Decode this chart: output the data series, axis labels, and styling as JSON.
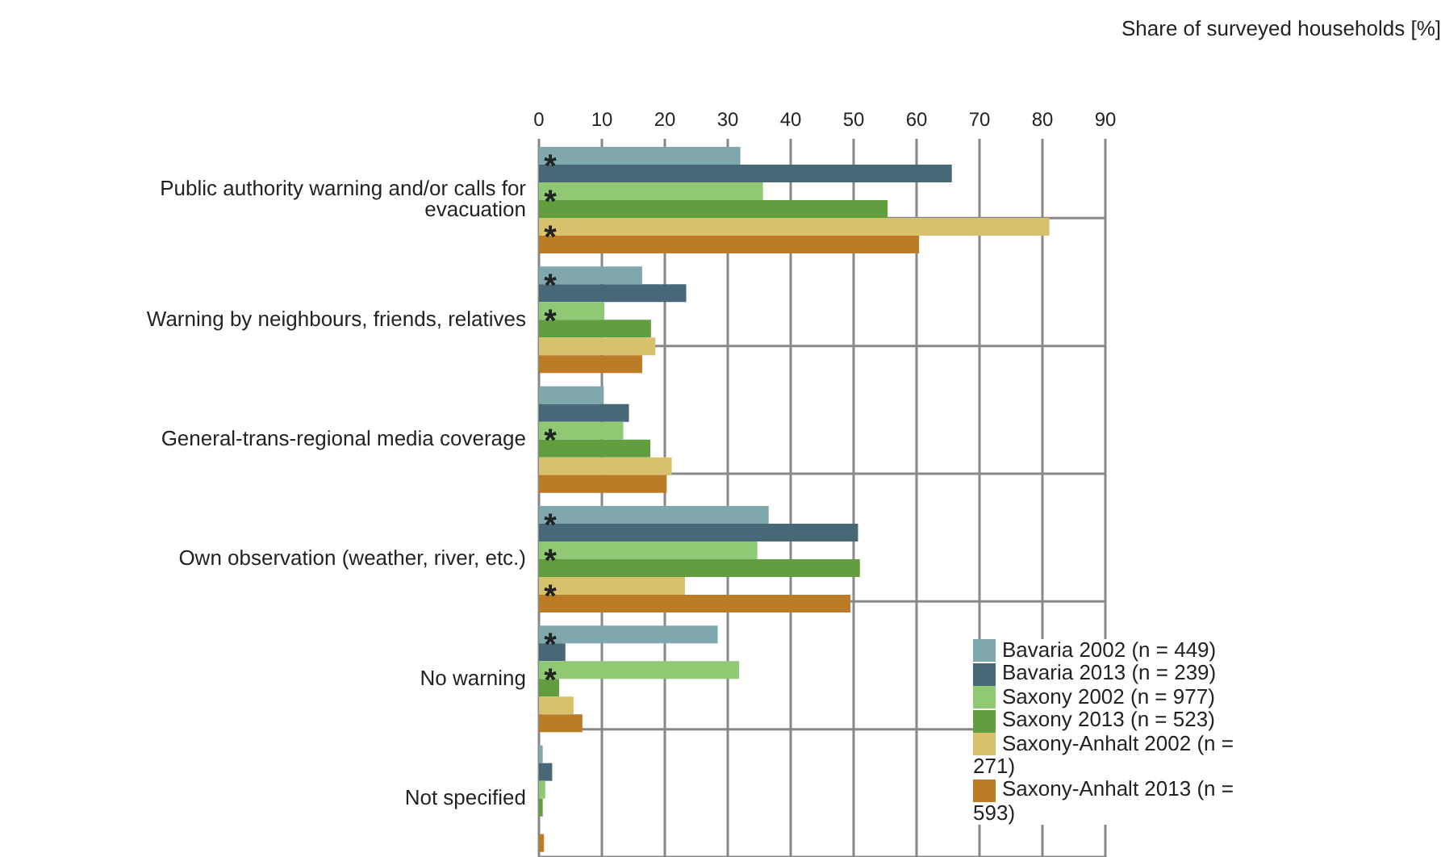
{
  "chart_data": {
    "type": "bar",
    "orientation": "horizontal",
    "xlabel": "Share of surveyed households [%]",
    "categories": [
      "Public authority warning and/or calls for evacuation",
      "Warning by neighbours, friends, relatives",
      "General-trans-regional media coverage",
      "Own observation (weather, river, etc.)",
      "No warning",
      "Not specified"
    ],
    "series": [
      {
        "name": "Bavaria 2002 (n = 449)",
        "color": "#7fa7ae",
        "values": [
          32.0,
          16.4,
          10.3,
          36.5,
          28.4,
          0.6
        ]
      },
      {
        "name": "Bavaria 2013 (n = 239)",
        "color": "#466877",
        "values": [
          65.6,
          23.4,
          14.3,
          50.7,
          4.2,
          2.1
        ],
        "value_labels": [
          "*",
          "*",
          null,
          "*",
          "*",
          null
        ]
      },
      {
        "name": "Saxony 2002 (n = 977)",
        "color": "#8fc974",
        "values": [
          35.6,
          10.4,
          13.4,
          34.7,
          31.8,
          1.0
        ]
      },
      {
        "name": "Saxony 2013 (n = 523)",
        "color": "#629e40",
        "values": [
          55.4,
          17.8,
          17.7,
          51.0,
          3.2,
          0.6
        ],
        "value_labels": [
          "*",
          "*",
          "*",
          "*",
          "*",
          null
        ]
      },
      {
        "name": "Saxony-Anhalt 2002 (n = 271)",
        "color": "#d8c16b",
        "values": [
          81.1,
          18.5,
          21.1,
          23.2,
          5.5,
          0
        ]
      },
      {
        "name": "Saxony-Anhalt 2013 (n = 593)",
        "color": "#bc7b27",
        "values": [
          60.4,
          16.4,
          20.3,
          49.5,
          6.9,
          0.8
        ],
        "value_labels": [
          "*",
          null,
          null,
          "*",
          null,
          null
        ]
      }
    ],
    "xlim": [
      0,
      90
    ],
    "xticks": [
      0,
      10,
      20,
      30,
      40,
      50,
      60,
      70,
      80,
      90
    ],
    "grid": true,
    "legend": "bottom right"
  }
}
